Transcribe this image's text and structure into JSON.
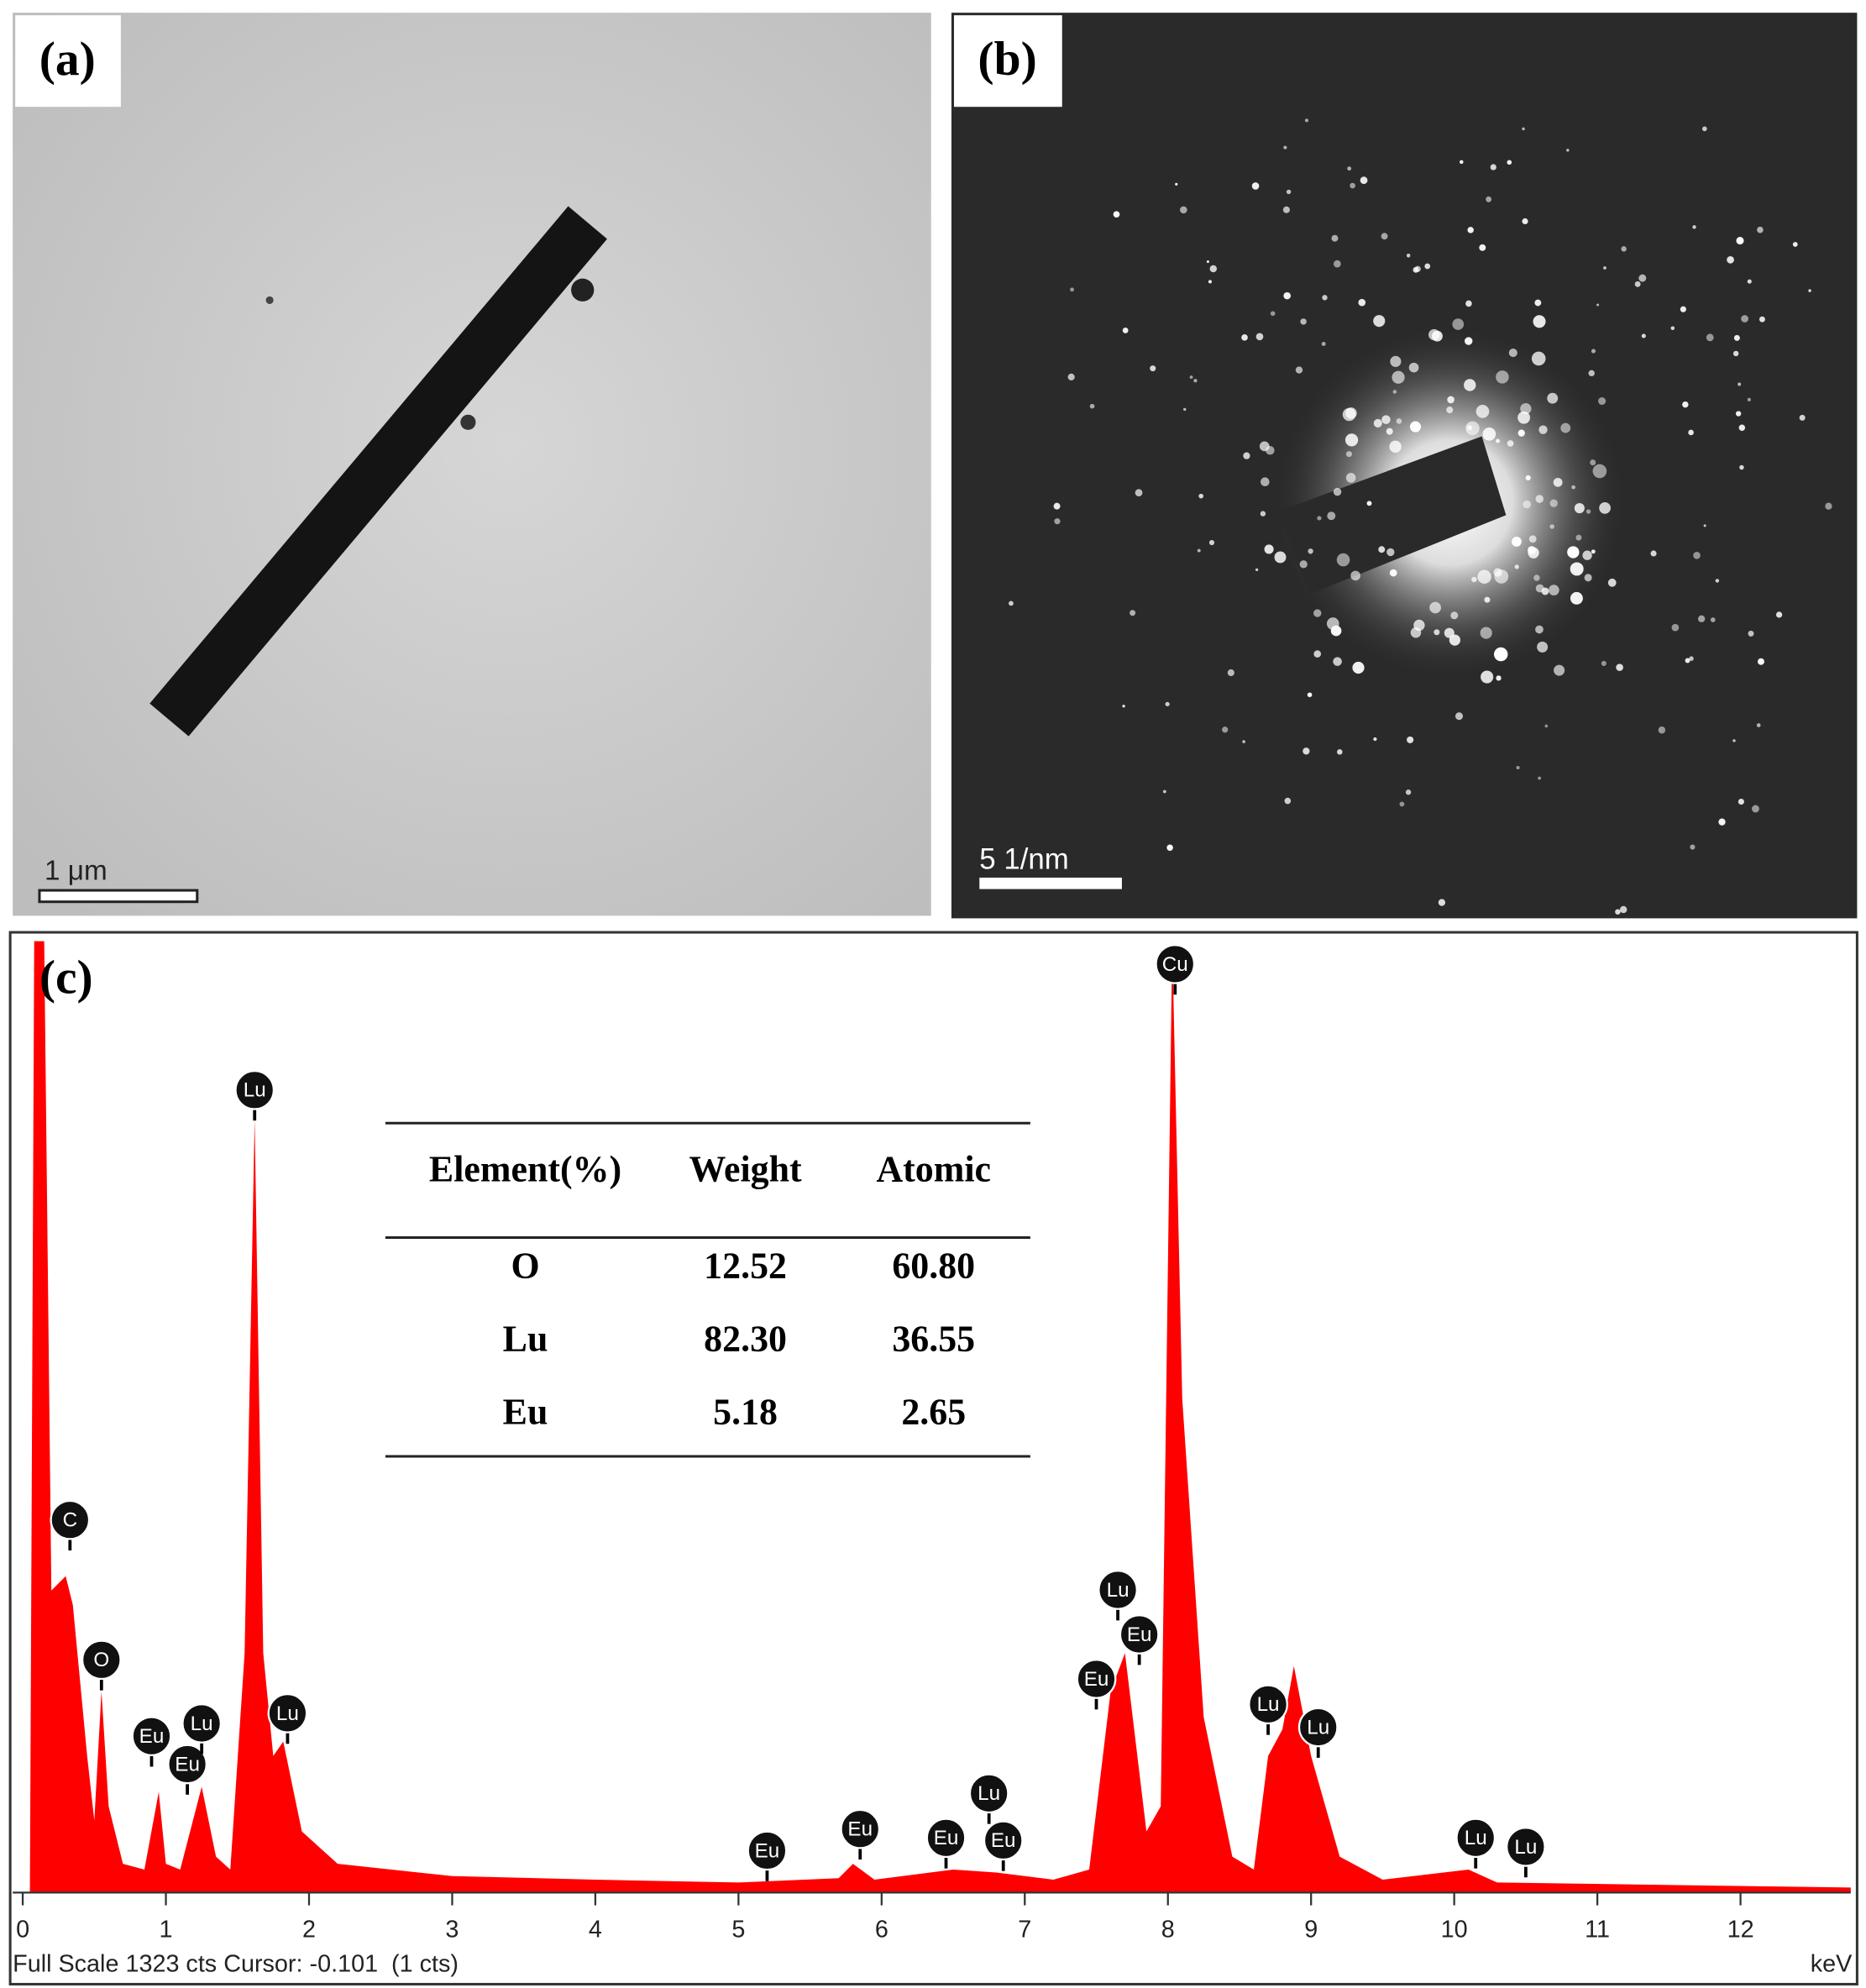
{
  "panels": {
    "a": {
      "label": "(a)",
      "scale_bar": "1 μm"
    },
    "b": {
      "label": "(b)",
      "scale_bar": "5 1/nm"
    }
  },
  "chart_data": {
    "type": "area",
    "label": "(c)",
    "color": "#ff0000",
    "x": [
      -0.07,
      0.05,
      0.08,
      0.15,
      0.2,
      0.3,
      0.35,
      0.45,
      0.5,
      0.55,
      0.6,
      0.7,
      0.85,
      0.95,
      1.0,
      1.1,
      1.25,
      1.35,
      1.45,
      1.55,
      1.62,
      1.68,
      1.75,
      1.82,
      1.95,
      2.2,
      3,
      4,
      5,
      5.7,
      5.8,
      5.95,
      6.5,
      6.8,
      7.2,
      7.45,
      7.6,
      7.7,
      7.85,
      7.95,
      8.03,
      8.1,
      8.25,
      8.45,
      8.6,
      8.7,
      8.8,
      8.88,
      9.0,
      9.2,
      9.5,
      10.1,
      10.3,
      12.77
    ],
    "values": [
      0,
      0,
      1323,
      1323,
      420,
      440,
      400,
      190,
      100,
      280,
      120,
      40,
      32,
      140,
      40,
      32,
      147,
      50,
      32,
      333,
      1076,
      333,
      190,
      210,
      85,
      40,
      23,
      18,
      14,
      20,
      40,
      18,
      32,
      28,
      18,
      32,
      280,
      333,
      85,
      120,
      1323,
      687,
      244,
      50,
      32,
      190,
      227,
      315,
      190,
      50,
      18,
      32,
      14,
      7
    ],
    "xlim": [
      -0.07,
      12.77
    ],
    "ylim": [
      0,
      1323
    ],
    "xticks": [
      0,
      1,
      2,
      3,
      4,
      5,
      6,
      7,
      8,
      9,
      10,
      11,
      12
    ],
    "x_unit": "keV",
    "footer": "Full Scale 1323 cts Cursor: -0.101  (1 cts)",
    "peak_labels": [
      {
        "text": "C",
        "x": 0.33
      },
      {
        "text": "O",
        "x": 0.55
      },
      {
        "text": "Eu",
        "x": 0.9
      },
      {
        "text": "Eu",
        "x": 1.15
      },
      {
        "text": "Lu",
        "x": 1.25
      },
      {
        "text": "Lu",
        "x": 1.62
      },
      {
        "text": "Lu",
        "x": 1.85
      },
      {
        "text": "Eu",
        "x": 5.2
      },
      {
        "text": "Eu",
        "x": 5.85
      },
      {
        "text": "Eu",
        "x": 6.45
      },
      {
        "text": "Lu",
        "x": 6.75
      },
      {
        "text": "Eu",
        "x": 6.85
      },
      {
        "text": "Eu",
        "x": 7.5
      },
      {
        "text": "Lu",
        "x": 7.65
      },
      {
        "text": "Eu",
        "x": 7.8
      },
      {
        "text": "Cu",
        "x": 8.05
      },
      {
        "text": "Lu",
        "x": 8.7
      },
      {
        "text": "Lu",
        "x": 9.05
      },
      {
        "text": "Lu",
        "x": 10.15
      },
      {
        "text": "Lu",
        "x": 10.5
      }
    ],
    "table": {
      "header": [
        "Element(%)",
        "Weight",
        "Atomic"
      ],
      "rows": [
        [
          "O",
          "12.52",
          "60.80"
        ],
        [
          "Lu",
          "82.30",
          "36.55"
        ],
        [
          "Eu",
          "5.18",
          "2.65"
        ]
      ]
    }
  }
}
